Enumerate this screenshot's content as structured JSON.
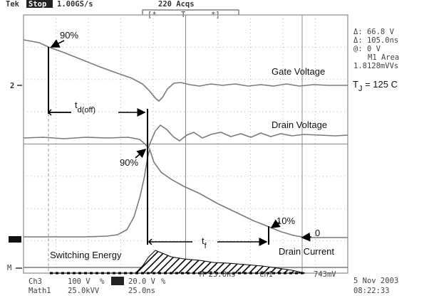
{
  "scope_header": {
    "left": "Tek",
    "mode_badge": "Stop",
    "sample_rate": "1.00GS/s",
    "acquisitions": "220 Acqs"
  },
  "readout": {
    "line1": "Δ: 66.8 V",
    "line2": "Δ: 105.0ns",
    "line3": "@: 0 V",
    "line4": "M1 Area",
    "line5": "1.8128mVVs"
  },
  "channel_marker": "2",
  "annotations": {
    "pct90_top": "90%",
    "pct90_mid": "90%",
    "pct10": "10%",
    "zero": "0",
    "td_main": "t",
    "td_sub": "d(off)",
    "tf_main": "t",
    "tf_sub": "f",
    "gate_voltage": "Gate Voltage",
    "drain_voltage": "Drain Voltage",
    "drain_current": "Drain Current",
    "switching_energy": "Switching Energy",
    "tj_main": "T",
    "tj_sub": "J",
    "tj_value": " = 125 C"
  },
  "scope_footer": {
    "ch3_label": "Ch3",
    "ch3_scale": "100 V",
    "ch3_unit": "%",
    "ch4_scale": "20.0 V",
    "ch4_unit": "%",
    "time_base": "M 25.0ns",
    "trigger_ch": "Ch1",
    "trigger_level": "743mV",
    "math_label": "Math1",
    "math_scale": "25.0kVV",
    "math_time": "25.0ns",
    "date": "5 Nov 2003",
    "time": "08:22:33"
  },
  "colors": {
    "grid": "#8a8a8a",
    "trace": "#7a7a7a",
    "annotation": "#000000",
    "background": "#ffffff"
  }
}
